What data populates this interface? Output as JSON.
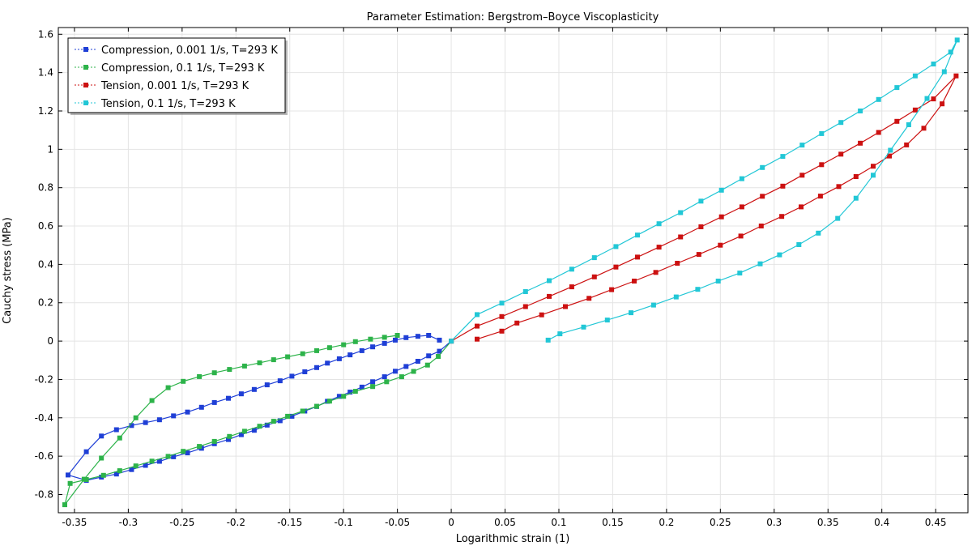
{
  "chart_data": {
    "type": "line",
    "title": "Parameter Estimation: Bergstrom–Boyce Viscoplasticity",
    "xlabel": "Logarithmic strain (1)",
    "ylabel": "Cauchy stress (MPa)",
    "xlim": [
      -0.365,
      0.48
    ],
    "ylim": [
      -0.895,
      1.635
    ],
    "grid": true,
    "legend_position": "top-left",
    "x_ticks": [
      -0.35,
      -0.3,
      -0.25,
      -0.2,
      -0.15,
      -0.1,
      -0.05,
      0,
      0.05,
      0.1,
      0.15,
      0.2,
      0.25,
      0.3,
      0.35,
      0.4,
      0.45
    ],
    "x_tick_labels": [
      "-0.35",
      "-0.3",
      "-0.25",
      "-0.2",
      "-0.15",
      "-0.1",
      "-0.05",
      "0",
      "0.05",
      "0.1",
      "0.15",
      "0.2",
      "0.25",
      "0.3",
      "0.35",
      "0.4",
      "0.45"
    ],
    "y_ticks": [
      -0.8,
      -0.6,
      -0.4,
      -0.2,
      0,
      0.2,
      0.4,
      0.6,
      0.8,
      1.0,
      1.2,
      1.4,
      1.6
    ],
    "y_tick_labels": [
      "-0.8",
      "-0.6",
      "-0.4",
      "-0.2",
      "0",
      "0.2",
      "0.4",
      "0.6",
      "0.8",
      "1",
      "1.2",
      "1.4",
      "1.6"
    ],
    "series": [
      {
        "name": "Compression, 0.001 1/s, T=293 K",
        "color": "#1f3fd6",
        "data_points": [
          [
            0,
            0
          ],
          [
            -0.011,
            -0.053
          ],
          [
            -0.021,
            -0.077
          ],
          [
            -0.031,
            -0.105
          ],
          [
            -0.042,
            -0.132
          ],
          [
            -0.052,
            -0.157
          ],
          [
            -0.062,
            -0.186
          ],
          [
            -0.073,
            -0.212
          ],
          [
            -0.083,
            -0.24
          ],
          [
            -0.094,
            -0.266
          ],
          [
            -0.104,
            -0.288
          ],
          [
            -0.115,
            -0.314
          ],
          [
            -0.125,
            -0.341
          ],
          [
            -0.136,
            -0.365
          ],
          [
            -0.148,
            -0.392
          ],
          [
            -0.159,
            -0.415
          ],
          [
            -0.171,
            -0.438
          ],
          [
            -0.183,
            -0.465
          ],
          [
            -0.195,
            -0.488
          ],
          [
            -0.207,
            -0.513
          ],
          [
            -0.22,
            -0.535
          ],
          [
            -0.232,
            -0.559
          ],
          [
            -0.245,
            -0.583
          ],
          [
            -0.258,
            -0.603
          ],
          [
            -0.271,
            -0.627
          ],
          [
            -0.284,
            -0.648
          ],
          [
            -0.297,
            -0.67
          ],
          [
            -0.311,
            -0.693
          ],
          [
            -0.325,
            -0.709
          ],
          [
            -0.339,
            -0.726
          ],
          [
            -0.356,
            -0.698
          ],
          [
            -0.339,
            -0.577
          ],
          [
            -0.325,
            -0.495
          ],
          [
            -0.311,
            -0.462
          ],
          [
            -0.297,
            -0.44
          ],
          [
            -0.284,
            -0.425
          ],
          [
            -0.271,
            -0.41
          ],
          [
            -0.258,
            -0.39
          ],
          [
            -0.245,
            -0.37
          ],
          [
            -0.232,
            -0.345
          ],
          [
            -0.22,
            -0.32
          ],
          [
            -0.207,
            -0.298
          ],
          [
            -0.195,
            -0.275
          ],
          [
            -0.183,
            -0.252
          ],
          [
            -0.171,
            -0.228
          ],
          [
            -0.159,
            -0.207
          ],
          [
            -0.148,
            -0.183
          ],
          [
            -0.136,
            -0.16
          ],
          [
            -0.125,
            -0.138
          ],
          [
            -0.115,
            -0.115
          ],
          [
            -0.104,
            -0.092
          ],
          [
            -0.094,
            -0.072
          ],
          [
            -0.083,
            -0.05
          ],
          [
            -0.073,
            -0.03
          ],
          [
            -0.062,
            -0.012
          ],
          [
            -0.052,
            0.005
          ],
          [
            -0.042,
            0.018
          ],
          [
            -0.031,
            0.025
          ],
          [
            -0.021,
            0.03
          ],
          [
            -0.011,
            0.005
          ]
        ]
      },
      {
        "name": "Compression, 0.1 1/s, T=293 K",
        "color": "#2db34a",
        "data_points": [
          [
            0,
            0
          ],
          [
            -0.012,
            -0.08
          ],
          [
            -0.022,
            -0.125
          ],
          [
            -0.035,
            -0.158
          ],
          [
            -0.046,
            -0.186
          ],
          [
            -0.06,
            -0.212
          ],
          [
            -0.073,
            -0.237
          ],
          [
            -0.089,
            -0.262
          ],
          [
            -0.1,
            -0.288
          ],
          [
            -0.113,
            -0.313
          ],
          [
            -0.125,
            -0.34
          ],
          [
            -0.138,
            -0.365
          ],
          [
            -0.152,
            -0.392
          ],
          [
            -0.165,
            -0.418
          ],
          [
            -0.178,
            -0.444
          ],
          [
            -0.192,
            -0.47
          ],
          [
            -0.206,
            -0.497
          ],
          [
            -0.22,
            -0.523
          ],
          [
            -0.234,
            -0.549
          ],
          [
            -0.249,
            -0.575
          ],
          [
            -0.263,
            -0.601
          ],
          [
            -0.278,
            -0.626
          ],
          [
            -0.293,
            -0.651
          ],
          [
            -0.308,
            -0.676
          ],
          [
            -0.323,
            -0.7
          ],
          [
            -0.339,
            -0.722
          ],
          [
            -0.354,
            -0.742
          ],
          [
            -0.359,
            -0.853
          ],
          [
            -0.341,
            -0.72
          ],
          [
            -0.325,
            -0.61
          ],
          [
            -0.308,
            -0.505
          ],
          [
            -0.293,
            -0.4
          ],
          [
            -0.278,
            -0.31
          ],
          [
            -0.263,
            -0.243
          ],
          [
            -0.249,
            -0.21
          ],
          [
            -0.234,
            -0.185
          ],
          [
            -0.22,
            -0.165
          ],
          [
            -0.206,
            -0.148
          ],
          [
            -0.192,
            -0.13
          ],
          [
            -0.178,
            -0.113
          ],
          [
            -0.165,
            -0.097
          ],
          [
            -0.152,
            -0.082
          ],
          [
            -0.138,
            -0.066
          ],
          [
            -0.125,
            -0.05
          ],
          [
            -0.113,
            -0.034
          ],
          [
            -0.1,
            -0.019
          ],
          [
            -0.089,
            -0.003
          ],
          [
            -0.075,
            0.01
          ],
          [
            -0.062,
            0.02
          ],
          [
            -0.05,
            0.03
          ]
        ]
      },
      {
        "name": "Tension, 0.001 1/s, T=293 K",
        "color": "#cc1111",
        "data_points": [
          [
            0,
            0
          ],
          [
            0.024,
            0.078
          ],
          [
            0.047,
            0.128
          ],
          [
            0.069,
            0.18
          ],
          [
            0.091,
            0.233
          ],
          [
            0.112,
            0.283
          ],
          [
            0.133,
            0.335
          ],
          [
            0.153,
            0.386
          ],
          [
            0.173,
            0.438
          ],
          [
            0.193,
            0.49
          ],
          [
            0.213,
            0.543
          ],
          [
            0.232,
            0.596
          ],
          [
            0.251,
            0.648
          ],
          [
            0.27,
            0.7
          ],
          [
            0.289,
            0.755
          ],
          [
            0.308,
            0.808
          ],
          [
            0.326,
            0.865
          ],
          [
            0.344,
            0.92
          ],
          [
            0.362,
            0.975
          ],
          [
            0.38,
            1.032
          ],
          [
            0.397,
            1.088
          ],
          [
            0.414,
            1.146
          ],
          [
            0.431,
            1.205
          ],
          [
            0.448,
            1.263
          ],
          [
            0.469,
            1.383
          ],
          [
            0.456,
            1.237
          ],
          [
            0.439,
            1.11
          ],
          [
            0.423,
            1.023
          ],
          [
            0.407,
            0.965
          ],
          [
            0.392,
            0.912
          ],
          [
            0.376,
            0.858
          ],
          [
            0.36,
            0.806
          ],
          [
            0.343,
            0.756
          ],
          [
            0.325,
            0.7
          ],
          [
            0.307,
            0.65
          ],
          [
            0.288,
            0.6
          ],
          [
            0.269,
            0.548
          ],
          [
            0.25,
            0.5
          ],
          [
            0.23,
            0.452
          ],
          [
            0.21,
            0.406
          ],
          [
            0.19,
            0.358
          ],
          [
            0.17,
            0.313
          ],
          [
            0.149,
            0.268
          ],
          [
            0.128,
            0.223
          ],
          [
            0.106,
            0.18
          ],
          [
            0.084,
            0.137
          ],
          [
            0.061,
            0.094
          ],
          [
            0.047,
            0.052
          ],
          [
            0.024,
            0.01
          ]
        ]
      },
      {
        "name": "Tension, 0.1 1/s, T=293 K",
        "color": "#22c7d6",
        "data_points": [
          [
            0,
            0
          ],
          [
            0.024,
            0.138
          ],
          [
            0.047,
            0.198
          ],
          [
            0.069,
            0.258
          ],
          [
            0.091,
            0.315
          ],
          [
            0.112,
            0.375
          ],
          [
            0.133,
            0.435
          ],
          [
            0.153,
            0.493
          ],
          [
            0.173,
            0.553
          ],
          [
            0.193,
            0.612
          ],
          [
            0.213,
            0.67
          ],
          [
            0.232,
            0.73
          ],
          [
            0.251,
            0.787
          ],
          [
            0.27,
            0.847
          ],
          [
            0.289,
            0.905
          ],
          [
            0.308,
            0.963
          ],
          [
            0.326,
            1.022
          ],
          [
            0.344,
            1.082
          ],
          [
            0.362,
            1.14
          ],
          [
            0.38,
            1.2
          ],
          [
            0.397,
            1.26
          ],
          [
            0.414,
            1.322
          ],
          [
            0.431,
            1.383
          ],
          [
            0.448,
            1.445
          ],
          [
            0.464,
            1.507
          ],
          [
            0.47,
            1.57
          ],
          [
            0.458,
            1.405
          ],
          [
            0.442,
            1.265
          ],
          [
            0.425,
            1.128
          ],
          [
            0.408,
            0.995
          ],
          [
            0.392,
            0.865
          ],
          [
            0.376,
            0.745
          ],
          [
            0.359,
            0.64
          ],
          [
            0.341,
            0.563
          ],
          [
            0.323,
            0.503
          ],
          [
            0.305,
            0.45
          ],
          [
            0.287,
            0.403
          ],
          [
            0.268,
            0.355
          ],
          [
            0.248,
            0.313
          ],
          [
            0.229,
            0.27
          ],
          [
            0.209,
            0.23
          ],
          [
            0.188,
            0.188
          ],
          [
            0.167,
            0.148
          ],
          [
            0.145,
            0.11
          ],
          [
            0.123,
            0.073
          ],
          [
            0.101,
            0.038
          ],
          [
            0.09,
            0.005
          ]
        ]
      }
    ]
  }
}
